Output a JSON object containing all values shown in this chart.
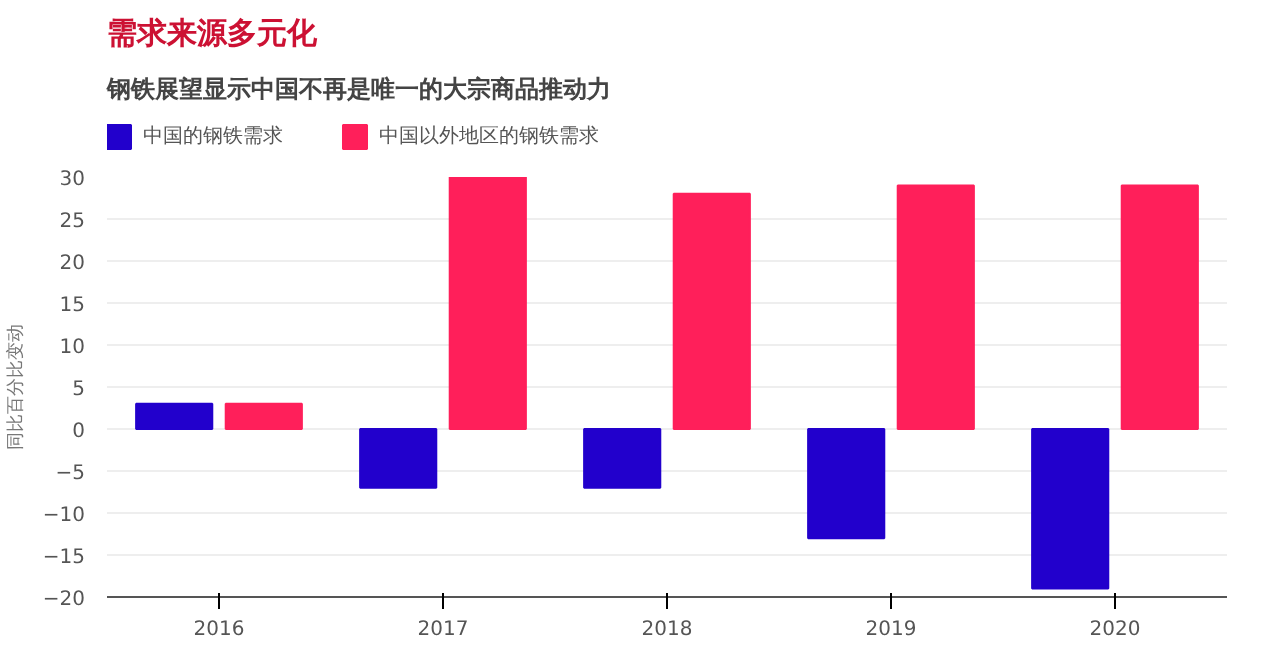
{
  "chart_data": {
    "type": "bar",
    "title": "需求来源多元化",
    "subtitle": "钢铁展望显示中国不再是唯一的大宗商品推动力",
    "ylabel": "同比百分比变动",
    "categories": [
      "2016",
      "2017",
      "2018",
      "2019",
      "2020"
    ],
    "series": [
      {
        "name": "中国的钢铁需求",
        "color": "#2200cc",
        "values": [
          3,
          -7,
          -7,
          -13,
          -19
        ]
      },
      {
        "name": "中国以外地区的钢铁需求",
        "color": "#ff1f5a",
        "values": [
          3,
          30,
          28,
          29,
          29
        ]
      }
    ],
    "ylim": [
      -20,
      30
    ],
    "yticks": [
      -20,
      -15,
      -10,
      -5,
      0,
      5,
      10,
      15,
      20,
      25,
      30
    ],
    "grid": "y",
    "legend": "top left"
  }
}
